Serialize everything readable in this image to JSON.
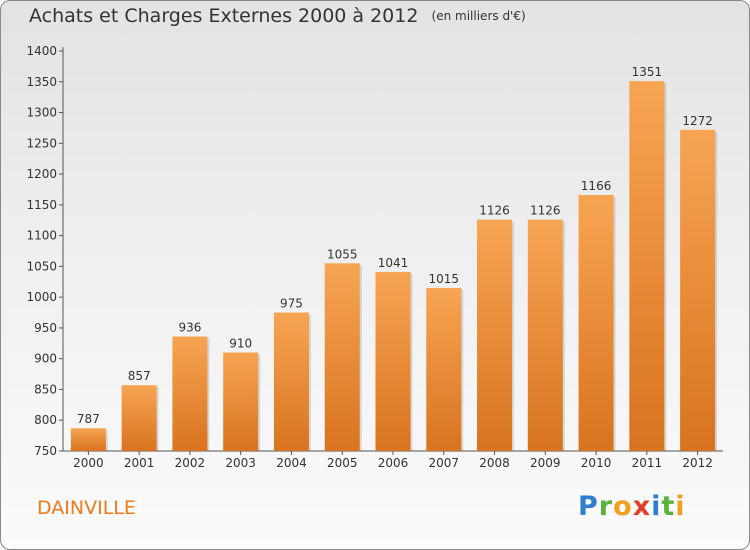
{
  "title": "Achats et Charges Externes 2000 à 2012",
  "subtitle": "(en milliers d'€)",
  "city": "DAINVILLE",
  "logo": "Proxiti",
  "colors": {
    "bar_light": "#f7a553",
    "bar_dark": "#d8731f",
    "city": "#f07a1a",
    "axis": "#555555"
  },
  "chart_data": {
    "type": "bar",
    "title": "Achats et Charges Externes 2000 à 2012",
    "subtitle": "(en milliers d'€)",
    "categories": [
      "2000",
      "2001",
      "2002",
      "2003",
      "2004",
      "2005",
      "2006",
      "2007",
      "2008",
      "2009",
      "2010",
      "2011",
      "2012"
    ],
    "values": [
      787,
      857,
      936,
      910,
      975,
      1055,
      1041,
      1015,
      1126,
      1126,
      1166,
      1351,
      1272
    ],
    "ylim": [
      750,
      1400
    ],
    "yticks": [
      750,
      800,
      850,
      900,
      950,
      1000,
      1050,
      1100,
      1150,
      1200,
      1250,
      1300,
      1350,
      1400
    ],
    "grid": false,
    "data_labels": true
  }
}
